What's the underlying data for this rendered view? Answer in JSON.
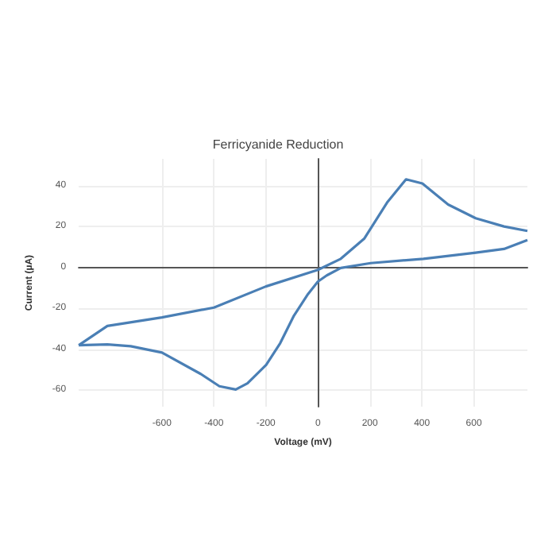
{
  "chart_data": {
    "type": "line",
    "title": "Ferricyanide Reduction",
    "xlabel": "Voltage (mV)",
    "ylabel": "Current (µA)",
    "series": [
      {
        "color": "#4a7fb5",
        "x": [
          -920,
          -810,
          -600,
          -400,
          -200,
          0,
          88,
          178,
          268,
          339,
          402,
          501,
          607,
          716,
          806
        ],
        "values": [
          -38,
          -28.6,
          -24.4,
          -19.6,
          -9.3,
          -1.2,
          4.2,
          14,
          32,
          43,
          41,
          30.7,
          24,
          20,
          17.8
        ]
      },
      {
        "color": "#4a7fb5",
        "x": [
          806,
          716,
          607,
          406,
          203,
          88,
          34,
          0,
          -38,
          -92,
          -145,
          -199,
          -271,
          -316,
          -379,
          -451,
          -600,
          -720,
          -810,
          -920
        ],
        "values": [
          13.3,
          9,
          7.2,
          4.2,
          2.1,
          -0.3,
          -3.9,
          -6.9,
          -13,
          -23.5,
          -37,
          -47.6,
          -56.6,
          -59.6,
          -58,
          -52,
          -41.6,
          -38.5,
          -37.6,
          -38
        ]
      }
    ],
    "xlim": [
      -920,
      806
    ],
    "xticks": [
      -600,
      -400,
      -200,
      0,
      200,
      400,
      600
    ],
    "ylim": [
      -68,
      53
    ],
    "yticks": [
      -60,
      -40,
      -20,
      0,
      20,
      40
    ],
    "grid": true,
    "marker": "none",
    "line_style": "solid"
  }
}
